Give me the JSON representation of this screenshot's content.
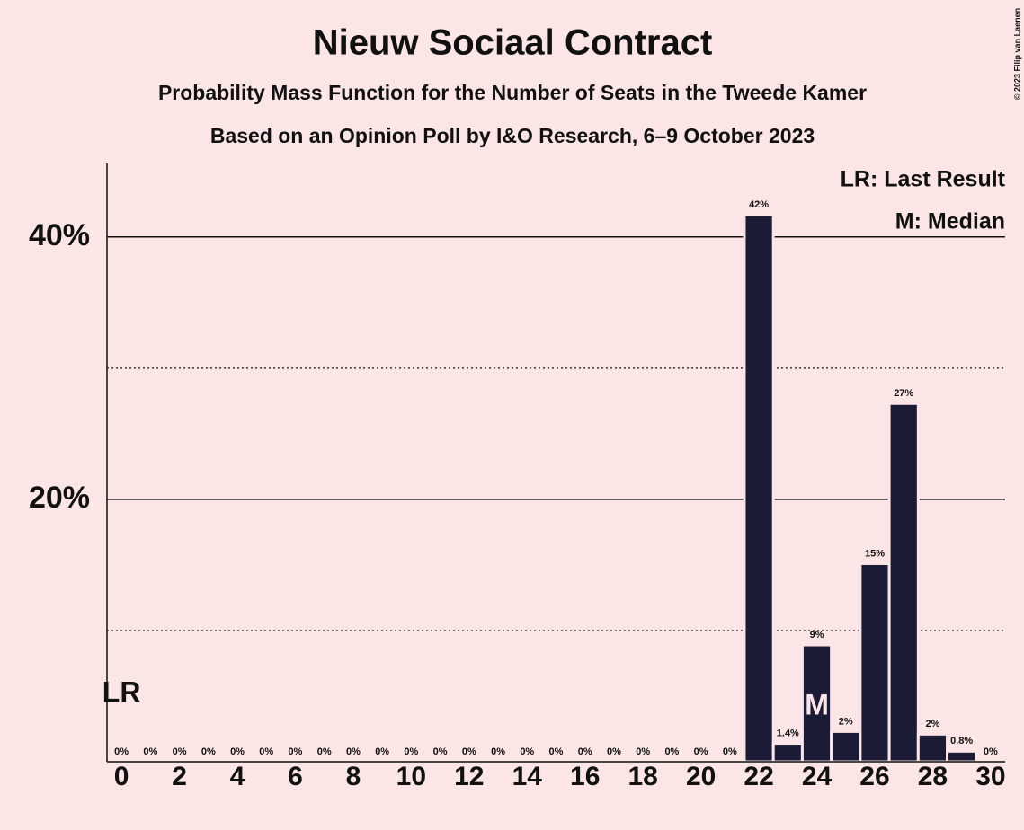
{
  "chart_data": {
    "type": "bar",
    "title": "Nieuw Sociaal Contract",
    "subtitle": "Probability Mass Function for the Number of Seats in the Tweede Kamer",
    "subtitle2": "Based on an Opinion Poll by I&O Research, 6–9 October 2023",
    "copyright": "© 2023 Filip van Laenen",
    "legend": [
      "LR: Last Result",
      "M: Median"
    ],
    "x": [
      0,
      1,
      2,
      3,
      4,
      5,
      6,
      7,
      8,
      9,
      10,
      11,
      12,
      13,
      14,
      15,
      16,
      17,
      18,
      19,
      20,
      21,
      22,
      23,
      24,
      25,
      26,
      27,
      28,
      29,
      30
    ],
    "values": [
      0,
      0,
      0,
      0,
      0,
      0,
      0,
      0,
      0,
      0,
      0,
      0,
      0,
      0,
      0,
      0,
      0,
      0,
      0,
      0,
      0,
      0,
      41.7,
      1.4,
      8.9,
      2.3,
      15.1,
      27.3,
      2.1,
      0.8,
      0
    ],
    "value_labels": [
      "0%",
      "0%",
      "0%",
      "0%",
      "0%",
      "0%",
      "0%",
      "0%",
      "0%",
      "0%",
      "0%",
      "0%",
      "0%",
      "0%",
      "0%",
      "0%",
      "0%",
      "0%",
      "0%",
      "0%",
      "0%",
      "0%",
      "42%",
      "1.4%",
      "9%",
      "2%",
      "15%",
      "27%",
      "2%",
      "0.8%",
      "0%"
    ],
    "color": "#1b1b36",
    "annotations": [
      {
        "label": "LR",
        "x": 0
      },
      {
        "label": "M",
        "x": 24
      }
    ],
    "xlim": [
      -0.5,
      30.5
    ],
    "xticks": [
      0,
      2,
      4,
      6,
      8,
      10,
      12,
      14,
      16,
      18,
      20,
      22,
      24,
      26,
      28,
      30
    ],
    "ylim": [
      0,
      45.6
    ],
    "yticks": [
      {
        "value": 20,
        "label": "20%"
      },
      {
        "value": 40,
        "label": "40%"
      }
    ],
    "yminor": [
      10,
      30
    ],
    "grid": true
  }
}
